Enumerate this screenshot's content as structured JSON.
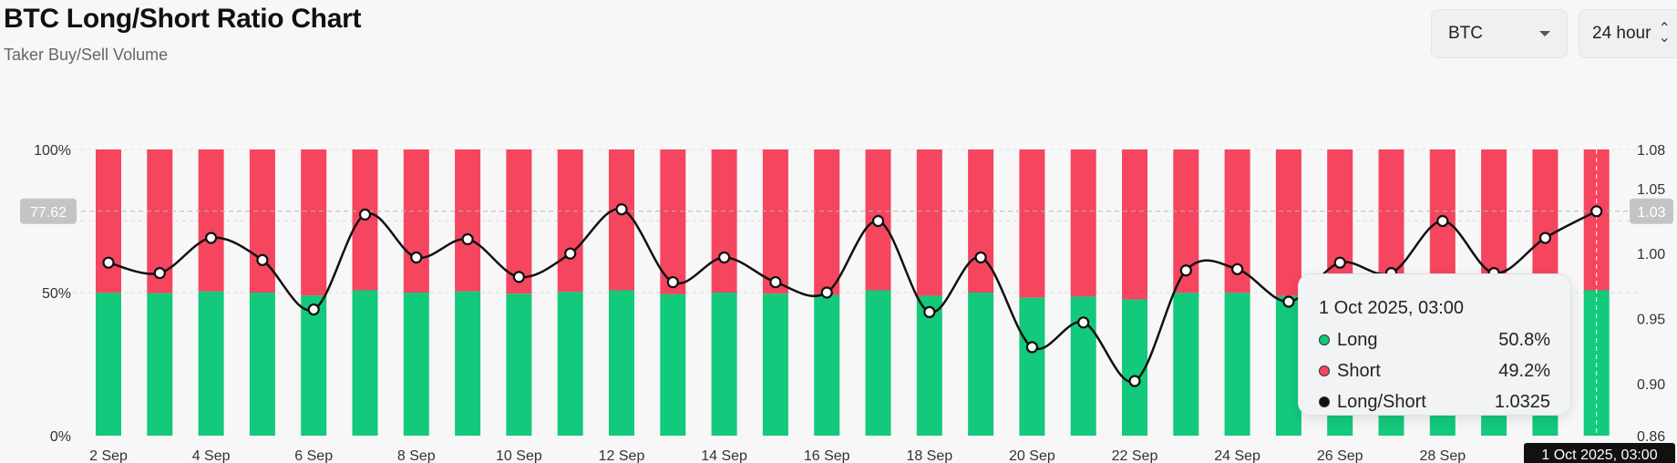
{
  "header": {
    "title": "BTC Long/Short Ratio Chart",
    "subtitle": "Taker Buy/Sell Volume"
  },
  "controls": {
    "coin_select": "BTC",
    "period_select": "24 hour"
  },
  "colors": {
    "long": "#13c97b",
    "short": "#f5455f",
    "ratio_line": "#111111"
  },
  "chart_data": {
    "type": "bar",
    "x": [
      "2 Sep",
      "3 Sep",
      "4 Sep",
      "5 Sep",
      "6 Sep",
      "7 Sep",
      "8 Sep",
      "9 Sep",
      "10 Sep",
      "11 Sep",
      "12 Sep",
      "13 Sep",
      "14 Sep",
      "15 Sep",
      "16 Sep",
      "17 Sep",
      "18 Sep",
      "19 Sep",
      "20 Sep",
      "21 Sep",
      "22 Sep",
      "23 Sep",
      "24 Sep",
      "25 Sep",
      "26 Sep",
      "27 Sep",
      "28 Sep",
      "29 Sep",
      "30 Sep",
      "1 Oct"
    ],
    "tick_labels": [
      "2 Sep",
      "4 Sep",
      "6 Sep",
      "8 Sep",
      "10 Sep",
      "12 Sep",
      "14 Sep",
      "16 Sep",
      "18 Sep",
      "20 Sep",
      "22 Sep",
      "24 Sep",
      "26 Sep",
      "28 Sep"
    ],
    "series": [
      {
        "name": "Long",
        "unit": "%",
        "values": [
          49.9,
          49.8,
          50.4,
          50.0,
          49.0,
          50.8,
          50.0,
          50.4,
          49.6,
          50.2,
          50.8,
          49.4,
          50.0,
          49.6,
          49.2,
          50.8,
          48.9,
          50.0,
          48.2,
          48.6,
          47.6,
          49.9,
          49.9,
          48.8,
          50.0,
          49.6,
          50.8,
          49.6,
          50.4,
          50.8
        ]
      },
      {
        "name": "Short",
        "unit": "%",
        "values": [
          50.1,
          50.2,
          49.6,
          50.0,
          51.0,
          49.2,
          50.0,
          49.6,
          50.4,
          49.8,
          49.2,
          50.6,
          50.0,
          50.4,
          50.8,
          49.2,
          51.1,
          50.0,
          51.8,
          51.4,
          52.4,
          50.1,
          50.1,
          51.2,
          50.0,
          50.4,
          49.2,
          50.4,
          49.6,
          49.2
        ]
      },
      {
        "name": "Long/Short",
        "values": [
          0.993,
          0.985,
          1.012,
          0.995,
          0.957,
          1.03,
          0.997,
          1.011,
          0.982,
          1.0,
          1.034,
          0.978,
          0.997,
          0.978,
          0.97,
          1.025,
          0.955,
          0.997,
          0.928,
          0.947,
          0.902,
          0.987,
          0.988,
          0.963,
          0.993,
          0.985,
          1.025,
          0.985,
          1.012,
          1.0325
        ]
      }
    ],
    "y_left": {
      "ticks": [
        "100%",
        "50%",
        "0%"
      ],
      "range": [
        0,
        100
      ]
    },
    "y_right": {
      "ticks": [
        "1.08",
        "1.05",
        "1.00",
        "0.95",
        "0.90",
        "0.86"
      ],
      "range": [
        0.86,
        1.08
      ]
    },
    "crosshair": {
      "left_label": "77.62",
      "right_label": "1.03",
      "x_label": "1 Oct 2025, 03:00"
    },
    "tooltip": {
      "time": "1 Oct 2025, 03:00",
      "rows": [
        {
          "label": "Long",
          "value": "50.8%"
        },
        {
          "label": "Short",
          "value": "49.2%"
        },
        {
          "label": "Long/Short",
          "value": "1.0325"
        }
      ]
    }
  }
}
